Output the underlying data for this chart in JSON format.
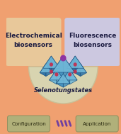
{
  "bg_color": "#f0a070",
  "box_left_color": "#e8c89a",
  "box_right_color": "#ccc8e0",
  "box_left_text": "Electrochemical\nbiosensors",
  "box_right_text": "Fluorescence\nbiosensors",
  "semicircle_color": "#d8d4b0",
  "semicircle_edge": "#c8c098",
  "label_text": "Selenotungstates",
  "label_color": "#1a1a40",
  "config_text": "Configuration",
  "app_text": "Application",
  "config_color": "#b0b07a",
  "config_edge": "#909060",
  "arrow_color": "#7040a0",
  "arrow_left_color": "#c87030",
  "arrow_right_color": "#7050a0",
  "crystal_main_color": "#4090c0",
  "crystal_light_color": "#70b8d8",
  "crystal_dark_color": "#2870a8",
  "crystal_edge_color": "#1a5080",
  "dot_red": "#c03050",
  "dot_purple": "#9030a0",
  "text_color": "#1a1a40",
  "figw": 1.71,
  "figh": 1.89,
  "dpi": 100
}
